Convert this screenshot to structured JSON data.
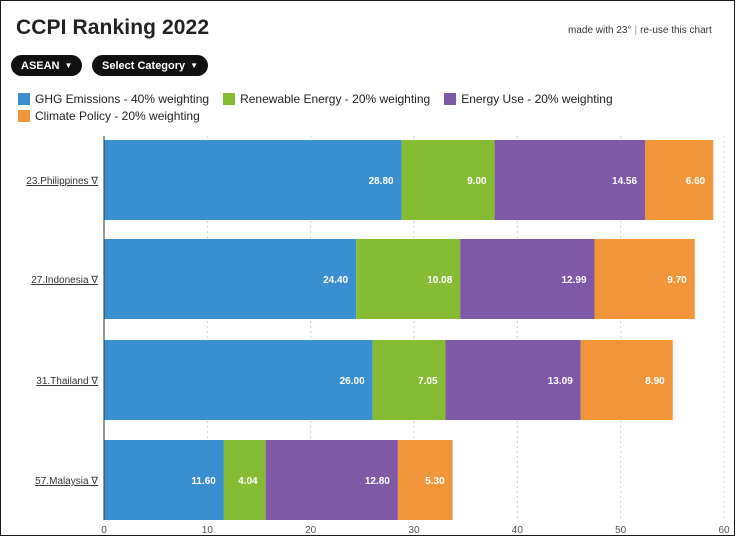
{
  "header": {
    "title": "CCPI Ranking 2022",
    "made_with": "made with 23°",
    "reuse": "re-use this chart"
  },
  "controls": {
    "region_label": "ASEAN",
    "category_label": "Select Category"
  },
  "icons": {
    "dropdown": "chevron-down-icon",
    "filter": "triangle-down-icon"
  },
  "colors": {
    "ghg": "#3a8fd0",
    "renewable": "#86bc34",
    "energy_use": "#7f58a6",
    "climate_policy": "#f0953a"
  },
  "chart_data": {
    "type": "bar",
    "orientation": "horizontal",
    "stacked": true,
    "categories": [
      "23.Philippines ∇",
      "27.Indonesia ∇",
      "31.Thailand ∇",
      "57.Malaysia ∇"
    ],
    "series": [
      {
        "name": "GHG Emissions - 40% weighting",
        "color": "#3a8fd0",
        "values": [
          28.8,
          24.4,
          26.0,
          11.6
        ],
        "labels": [
          "28.80",
          "24.40",
          "26.00",
          "11.60"
        ]
      },
      {
        "name": "Renewable Energy - 20% weighting",
        "color": "#86bc34",
        "values": [
          9.0,
          10.08,
          7.05,
          4.04
        ],
        "labels": [
          "9.00",
          "10.08",
          "7.05",
          "4.04"
        ]
      },
      {
        "name": "Energy Use - 20% weighting",
        "color": "#7f58a6",
        "values": [
          14.56,
          12.99,
          13.09,
          12.8
        ],
        "labels": [
          "14.56",
          "12.99",
          "13.09",
          "12.80"
        ]
      },
      {
        "name": "Climate Policy - 20% weighting",
        "color": "#f0953a",
        "values": [
          6.6,
          9.7,
          8.9,
          5.3
        ],
        "labels": [
          "6.60",
          "9.70",
          "8.90",
          "5.30"
        ]
      }
    ],
    "xlim": [
      0,
      60
    ],
    "xticks": [
      0,
      10,
      20,
      30,
      40,
      50,
      60
    ],
    "grid": true,
    "legend_position": "top"
  }
}
